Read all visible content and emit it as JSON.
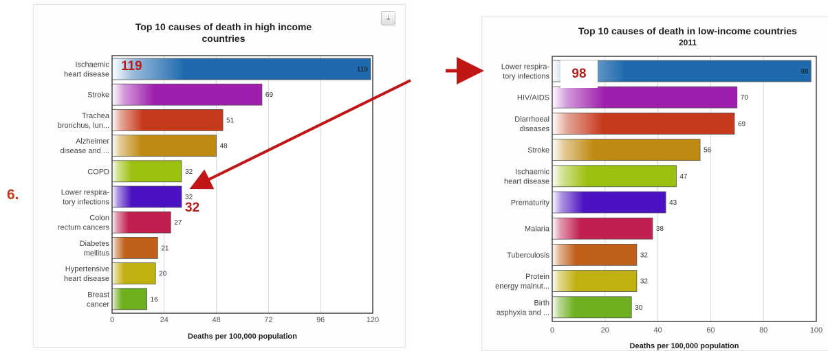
{
  "section_number": "6.",
  "export_icon": "download-icon",
  "callouts": {
    "left_value": "119",
    "left_value_2": "32",
    "right_value": "98"
  },
  "chart_data": [
    {
      "type": "bar",
      "orientation": "horizontal",
      "title": "Top 10 causes of death in high income countries",
      "title_lines": [
        "Top 10 causes of death in high income",
        "countries"
      ],
      "subtitle": "",
      "xlabel": "Deaths per 100,000 population",
      "ylabel": "",
      "xlim": [
        0,
        120
      ],
      "xticks": [
        0,
        24,
        48,
        72,
        96,
        120
      ],
      "categories": [
        [
          "Ischaemic",
          "heart disease"
        ],
        [
          "Stroke"
        ],
        [
          "Trachea",
          "bronchus, lun..."
        ],
        [
          "Alzheimer",
          "disease and ..."
        ],
        [
          "COPD"
        ],
        [
          "Lower respira-",
          "tory infections"
        ],
        [
          "Colon",
          "rectum cancers"
        ],
        [
          "Diabetes",
          "mellitus"
        ],
        [
          "Hypertensive",
          "heart disease"
        ],
        [
          "Breast",
          "cancer"
        ]
      ],
      "values": [
        119,
        69,
        51,
        48,
        32,
        32,
        27,
        21,
        20,
        16
      ],
      "colors": [
        "#1f6aae",
        "#9e1fae",
        "#c6391a",
        "#c08a12",
        "#9cc00f",
        "#4a12c0",
        "#c01f4f",
        "#c0601a",
        "#c0b012",
        "#6fb021"
      ],
      "grid": true,
      "legend": "none"
    },
    {
      "type": "bar",
      "orientation": "horizontal",
      "title": "Top 10 causes of death in low-income countries",
      "title_lines": [
        "Top 10 causes of death in low-income countries"
      ],
      "subtitle": "2011",
      "xlabel": "Deaths per 100,000 population",
      "ylabel": "",
      "xlim": [
        0,
        100
      ],
      "xticks": [
        0,
        20,
        40,
        60,
        80,
        100
      ],
      "categories": [
        [
          "Lower respira-",
          "tory infections"
        ],
        [
          "HIV/AIDS"
        ],
        [
          "Diarrhoeal",
          "diseases"
        ],
        [
          "Stroke"
        ],
        [
          "Ischaemic",
          "heart disease"
        ],
        [
          "Prematurity"
        ],
        [
          "Malaria"
        ],
        [
          "Tuberculosis"
        ],
        [
          "Protein",
          "energy malnut..."
        ],
        [
          "Birth",
          "asphyxia and ..."
        ]
      ],
      "values": [
        98,
        70,
        69,
        56,
        47,
        43,
        38,
        32,
        32,
        30
      ],
      "colors": [
        "#1f6aae",
        "#9e1fae",
        "#c6391a",
        "#c08a12",
        "#9cc00f",
        "#4a12c0",
        "#c01f4f",
        "#c0601a",
        "#c0b012",
        "#6fb021"
      ],
      "grid": true,
      "legend": "none"
    }
  ]
}
